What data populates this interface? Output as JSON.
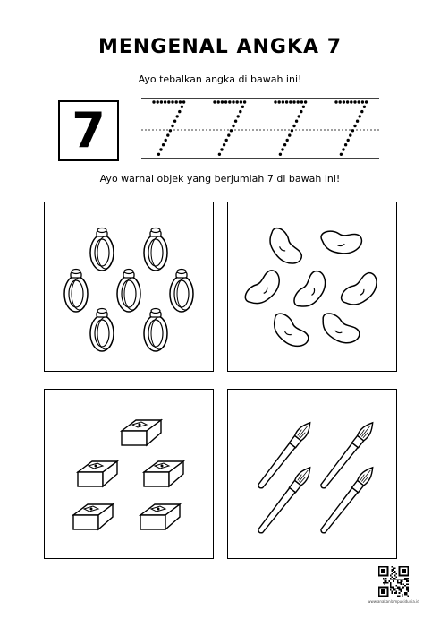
{
  "worksheet": {
    "title": "MENGENAL ANGKA 7",
    "instruction_trace": "Ayo tebalkan angka di bawah ini!",
    "number": "7",
    "instruction_color": "Ayo warnai objek yang berjumlah 7 di bawah ini!",
    "trace_count": 4,
    "panels": [
      {
        "object": "ring-icon",
        "count": 7
      },
      {
        "object": "bean-icon",
        "count": 7
      },
      {
        "object": "sharpener-icon",
        "count": 5
      },
      {
        "object": "paintbrush-icon",
        "count": 4
      }
    ],
    "footer_site": "www.anakanlampukidunia.id"
  },
  "colors": {
    "ink": "#000000",
    "paper": "#ffffff"
  }
}
